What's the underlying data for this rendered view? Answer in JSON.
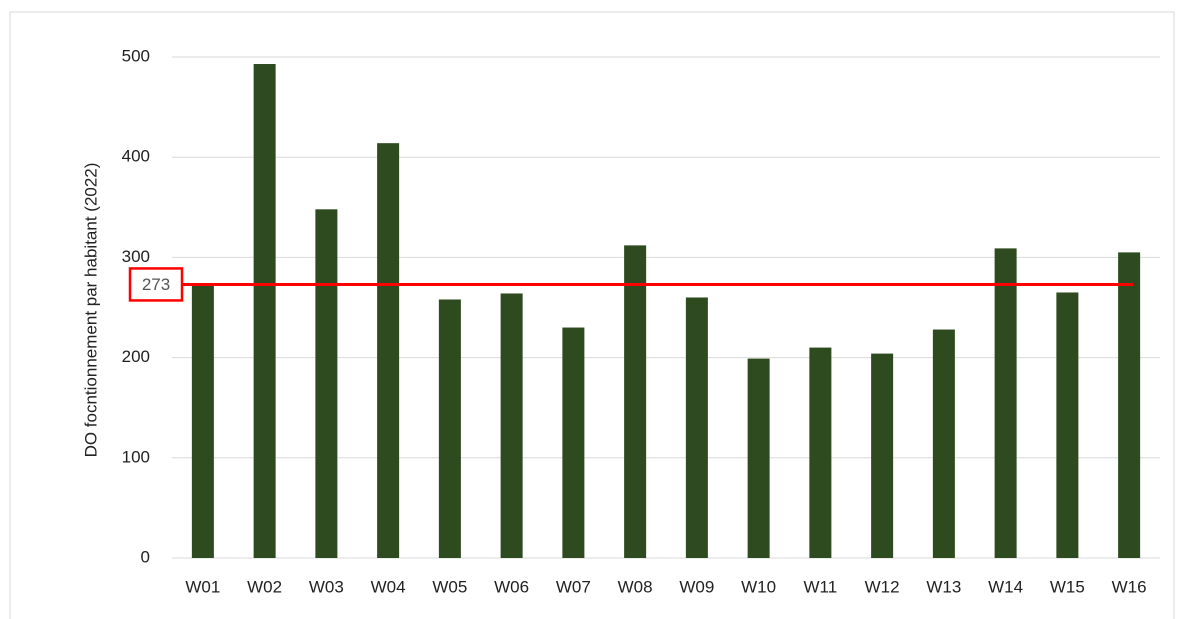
{
  "chart_data": {
    "type": "bar",
    "y_label": "DO focntionnement par habitant (2022)",
    "categories": [
      "W01",
      "W02",
      "W03",
      "W04",
      "W05",
      "W06",
      "W07",
      "W08",
      "W09",
      "W10",
      "W11",
      "W12",
      "W13",
      "W14",
      "W15",
      "W16"
    ],
    "values": [
      274,
      493,
      348,
      414,
      258,
      264,
      230,
      312,
      260,
      199,
      210,
      204,
      228,
      309,
      265,
      305
    ],
    "color": "#2e4a1f",
    "ylim": [
      0,
      500
    ],
    "yticks": [
      0,
      100,
      200,
      300,
      400,
      500
    ],
    "grid": true,
    "reference_line": {
      "value": 273,
      "color": "#ff0000"
    }
  }
}
